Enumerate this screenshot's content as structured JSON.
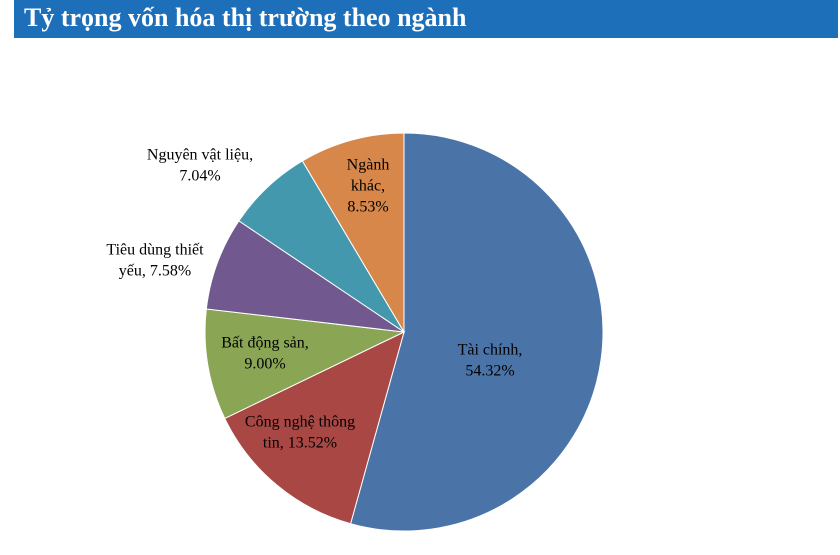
{
  "chart_data": {
    "type": "pie",
    "title": "Tỷ trọng vốn hóa thị trường theo ngành",
    "values": [
      54.32,
      13.52,
      9.0,
      7.58,
      7.04,
      8.53
    ],
    "value_labels": [
      [
        "Tài chính,",
        "54.32%"
      ],
      [
        "Công nghệ thông",
        "tin, 13.52%"
      ],
      [
        "Bất động sản,",
        "9.00%"
      ],
      [
        "Tiêu dùng thiết",
        "yếu, 7.58%"
      ],
      [
        "Nguyên vật liệu,",
        "7.04%"
      ],
      [
        "Ngành",
        "khác,",
        "8.53%"
      ]
    ],
    "colors": [
      "#4a74a8",
      "#a94744",
      "#8aa655",
      "#71598f",
      "#4498ae",
      "#d8874a"
    ]
  }
}
